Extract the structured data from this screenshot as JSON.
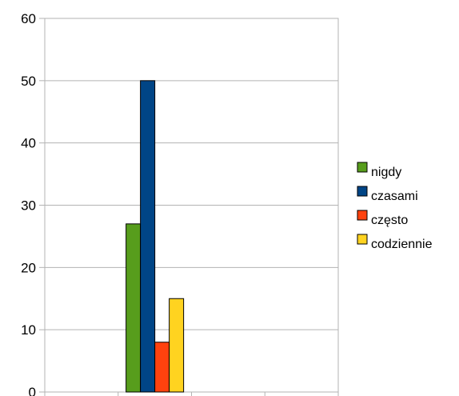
{
  "chart_data": {
    "type": "bar",
    "categories": [
      ""
    ],
    "series": [
      {
        "name": "nigdy",
        "values": [
          27
        ],
        "color": "#579d1c"
      },
      {
        "name": "czasami",
        "values": [
          50
        ],
        "color": "#004586"
      },
      {
        "name": "często",
        "values": [
          8
        ],
        "color": "#ff420e"
      },
      {
        "name": "codziennie",
        "values": [
          15
        ],
        "color": "#ffd320"
      }
    ],
    "title": "",
    "xlabel": "",
    "ylabel": "",
    "ylim": [
      0,
      60
    ],
    "yticks": [
      0,
      10,
      20,
      30,
      40,
      50,
      60
    ],
    "grid": true,
    "legend": "right"
  }
}
